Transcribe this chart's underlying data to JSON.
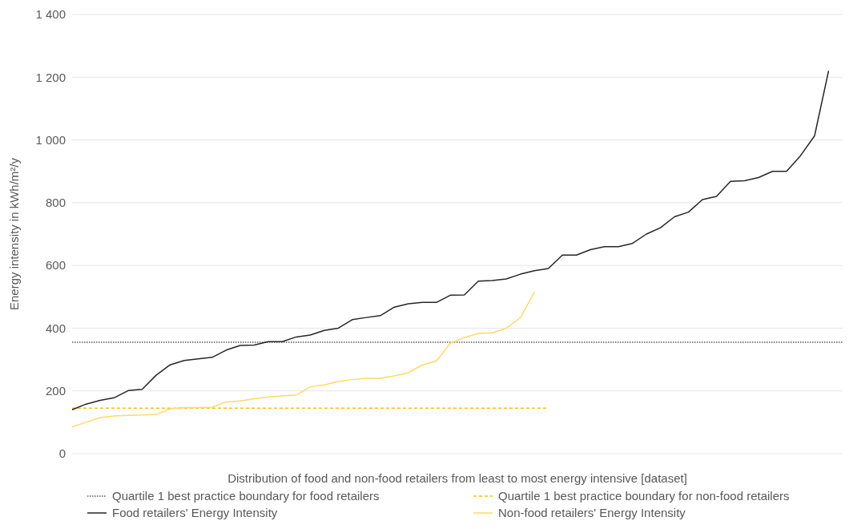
{
  "chart_data": {
    "type": "line",
    "xlabel": "Distribution of food and non-food retailers from least to most energy intensive [dataset]",
    "ylabel": "Energy intensity in kWh/m²/y",
    "categories": [
      null,
      null,
      null,
      null,
      null,
      null,
      null,
      null,
      null,
      null,
      null,
      null,
      null,
      null,
      null,
      null,
      null,
      null,
      null,
      null,
      null,
      null,
      null,
      null,
      null,
      null,
      null,
      null,
      null,
      null,
      null,
      null,
      null,
      null,
      null,
      null,
      null,
      null,
      null,
      null,
      null,
      null,
      null,
      null,
      null,
      null,
      null,
      null,
      null,
      null,
      null,
      null,
      null,
      null,
      null,
      null
    ],
    "series": [
      {
        "name": "Quartile 1 best practice boundary for food retailers",
        "color": "#595959",
        "line_style": "dotted",
        "values": [
          355,
          355,
          355,
          355,
          355,
          355,
          355,
          355,
          355,
          355,
          355,
          355,
          355,
          355,
          355,
          355,
          355,
          355,
          355,
          355,
          355,
          355,
          355,
          355,
          355,
          355,
          355,
          355,
          355,
          355,
          355,
          355,
          355,
          355,
          355,
          355,
          355,
          355,
          355,
          355,
          355,
          355,
          355,
          355,
          355,
          355,
          355,
          355,
          355,
          355,
          355,
          355,
          355,
          355,
          355,
          355
        ]
      },
      {
        "name": "Quartile 1 best practice boundary for non-food retailers",
        "color": "#ffc000",
        "line_style": "dashed",
        "values": [
          145,
          145,
          145,
          145,
          145,
          145,
          145,
          145,
          145,
          145,
          145,
          145,
          145,
          145,
          145,
          145,
          145,
          145,
          145,
          145,
          145,
          145,
          145,
          145,
          145,
          145,
          145,
          145,
          145,
          145,
          145,
          145,
          145,
          145,
          145,
          null,
          null,
          null,
          null,
          null,
          null,
          null,
          null,
          null,
          null,
          null,
          null,
          null,
          null,
          null,
          null,
          null,
          null,
          null,
          null,
          null
        ]
      },
      {
        "name": "Food retailers' Energy Intensity",
        "color": "#262626",
        "line_style": "solid",
        "values": [
          140,
          158,
          170,
          178,
          201,
          205,
          250,
          283,
          297,
          302,
          307,
          330,
          345,
          346,
          357,
          357,
          372,
          378,
          393,
          400,
          427,
          434,
          440,
          467,
          478,
          482,
          482,
          505,
          506,
          550,
          552,
          557,
          572,
          583,
          590,
          633,
          633,
          650,
          660,
          660,
          670,
          700,
          720,
          755,
          770,
          810,
          820,
          868,
          870,
          880,
          900,
          900,
          950,
          1013,
          1220,
          null
        ]
      },
      {
        "name": "Non-food retailers' Energy Intensity",
        "color": "#ffd966",
        "line_style": "solid",
        "values": [
          85,
          100,
          115,
          120,
          122,
          123,
          125,
          143,
          147,
          147,
          148,
          165,
          168,
          175,
          181,
          184,
          187,
          213,
          219,
          230,
          236,
          240,
          240,
          248,
          258,
          283,
          295,
          352,
          370,
          383,
          385,
          400,
          433,
          515,
          null,
          null,
          null,
          null,
          null,
          null,
          null,
          null,
          null,
          null,
          null,
          null,
          null,
          null,
          null,
          null,
          null,
          null,
          null,
          null,
          null,
          null
        ]
      }
    ],
    "ylim": [
      0,
      1400
    ],
    "yticks": [
      0,
      200,
      400,
      600,
      800,
      {
        "value": 1000,
        "label": "1 000"
      },
      {
        "value": 1200,
        "label": "1 200"
      },
      {
        "value": 1400,
        "label": "1 400"
      }
    ],
    "tick_labels": "y",
    "grid": "y",
    "legend": "bottom",
    "marker": "none"
  }
}
